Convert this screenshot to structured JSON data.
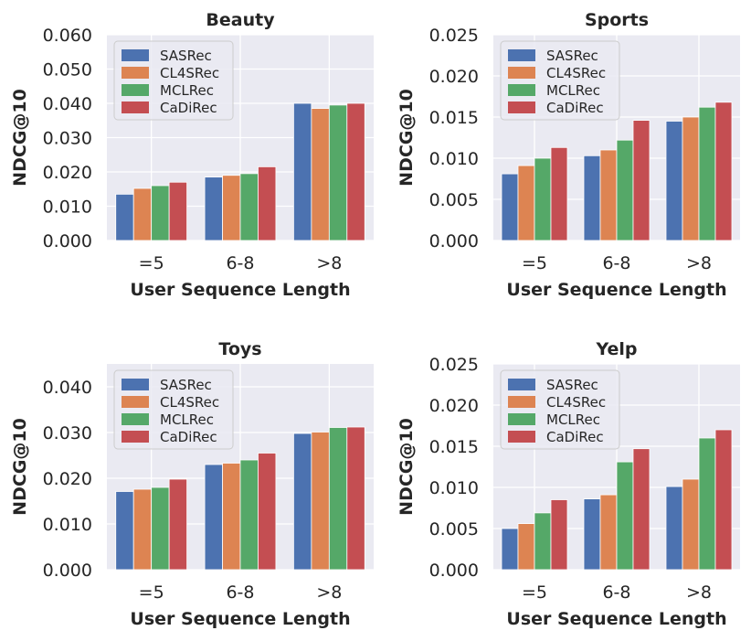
{
  "series_names": [
    "SASRec",
    "CL4SRec",
    "MCLRec",
    "CaDiRec"
  ],
  "colors": {
    "series": [
      "#4c72b0",
      "#dd8452",
      "#55a868",
      "#c44e52"
    ],
    "plot_bg": "#eaeaf2",
    "grid": "#ffffff",
    "text": "#262626"
  },
  "chart_data": [
    {
      "type": "bar",
      "title": "Beauty",
      "xlabel": "User Sequence Length",
      "ylabel": "NDCG@10",
      "categories": [
        "=5",
        "6-8",
        ">8"
      ],
      "ylim": [
        0,
        0.06
      ],
      "yticks": [
        "0.000",
        "0.010",
        "0.020",
        "0.030",
        "0.040",
        "0.050",
        "0.060"
      ],
      "legend": "top-left",
      "grid": true,
      "series": [
        {
          "name": "SASRec",
          "values": [
            0.0135,
            0.0185,
            0.04
          ]
        },
        {
          "name": "CL4SRec",
          "values": [
            0.0152,
            0.019,
            0.0385
          ]
        },
        {
          "name": "MCLRec",
          "values": [
            0.016,
            0.0195,
            0.0395
          ]
        },
        {
          "name": "CaDiRec",
          "values": [
            0.017,
            0.0215,
            0.04
          ]
        }
      ]
    },
    {
      "type": "bar",
      "title": "Sports",
      "xlabel": "User Sequence Length",
      "ylabel": "NDCG@10",
      "categories": [
        "=5",
        "6-8",
        ">8"
      ],
      "ylim": [
        0,
        0.025
      ],
      "yticks": [
        "0.000",
        "0.005",
        "0.010",
        "0.015",
        "0.020",
        "0.025"
      ],
      "legend": "top-left",
      "grid": true,
      "series": [
        {
          "name": "SASRec",
          "values": [
            0.0081,
            0.0103,
            0.0145
          ]
        },
        {
          "name": "CL4SRec",
          "values": [
            0.0091,
            0.011,
            0.015
          ]
        },
        {
          "name": "MCLRec",
          "values": [
            0.01,
            0.0122,
            0.0162
          ]
        },
        {
          "name": "CaDiRec",
          "values": [
            0.0113,
            0.0146,
            0.0168
          ]
        }
      ]
    },
    {
      "type": "bar",
      "title": "Toys",
      "xlabel": "User Sequence Length",
      "ylabel": "NDCG@10",
      "categories": [
        "=5",
        "6-8",
        ">8"
      ],
      "ylim": [
        0,
        0.045
      ],
      "yticks": [
        "0.000",
        "0.010",
        "0.020",
        "0.030",
        "0.040"
      ],
      "legend": "top-left",
      "grid": true,
      "series": [
        {
          "name": "SASRec",
          "values": [
            0.0171,
            0.023,
            0.0298
          ]
        },
        {
          "name": "CL4SRec",
          "values": [
            0.0176,
            0.0233,
            0.0301
          ]
        },
        {
          "name": "MCLRec",
          "values": [
            0.018,
            0.024,
            0.0311
          ]
        },
        {
          "name": "CaDiRec",
          "values": [
            0.0198,
            0.0255,
            0.0312
          ]
        }
      ]
    },
    {
      "type": "bar",
      "title": "Yelp",
      "xlabel": "User Sequence Length",
      "ylabel": "NDCG@10",
      "categories": [
        "=5",
        "6-8",
        ">8"
      ],
      "ylim": [
        0,
        0.025
      ],
      "yticks": [
        "0.000",
        "0.005",
        "0.010",
        "0.015",
        "0.020",
        "0.025"
      ],
      "legend": "top-left",
      "grid": true,
      "series": [
        {
          "name": "SASRec",
          "values": [
            0.005,
            0.0086,
            0.0101
          ]
        },
        {
          "name": "CL4SRec",
          "values": [
            0.0056,
            0.0091,
            0.011
          ]
        },
        {
          "name": "MCLRec",
          "values": [
            0.0069,
            0.0131,
            0.016
          ]
        },
        {
          "name": "CaDiRec",
          "values": [
            0.0085,
            0.0147,
            0.017
          ]
        }
      ]
    }
  ]
}
